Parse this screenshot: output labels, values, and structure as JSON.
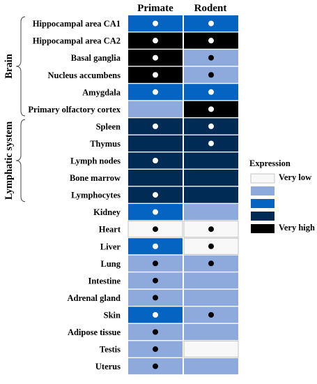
{
  "chart_data": {
    "type": "heatmap",
    "columns": [
      "Primate",
      "Rodent"
    ],
    "rows": [
      "Hippocampal area CA1",
      "Hippocampal area CA2",
      "Basal ganglia",
      "Nucleus accumbens",
      "Amygdala",
      "Primary olfactory cortex",
      "Spleen",
      "Thymus",
      "Lymph nodes",
      "Bone marrow",
      "Lymphocytes",
      "Kidney",
      "Heart",
      "Liver",
      "Lung",
      "Intestine",
      "Adrenal gland",
      "Skin",
      "Adipose tissue",
      "Testis",
      "Uterus"
    ],
    "levels": [
      1,
      2,
      3,
      4,
      5
    ],
    "level_colors": [
      "#f8f8f8",
      "#8eaadc",
      "#0563c1",
      "#002b55",
      "#000000"
    ],
    "values": [
      [
        3,
        3
      ],
      [
        5,
        5
      ],
      [
        5,
        2
      ],
      [
        5,
        2
      ],
      [
        3,
        3
      ],
      [
        2,
        5
      ],
      [
        4,
        4
      ],
      [
        4,
        4
      ],
      [
        4,
        4
      ],
      [
        4,
        4
      ],
      [
        4,
        4
      ],
      [
        3,
        2
      ],
      [
        1,
        1
      ],
      [
        3,
        1
      ],
      [
        2,
        2
      ],
      [
        2,
        2
      ],
      [
        2,
        2
      ],
      [
        3,
        2
      ],
      [
        2,
        2
      ],
      [
        2,
        1
      ],
      [
        2,
        2
      ]
    ],
    "dots": [
      [
        true,
        true
      ],
      [
        true,
        true
      ],
      [
        true,
        true
      ],
      [
        true,
        true
      ],
      [
        true,
        true
      ],
      [
        false,
        true
      ],
      [
        true,
        true
      ],
      [
        false,
        true
      ],
      [
        true,
        false
      ],
      [
        false,
        false
      ],
      [
        true,
        false
      ],
      [
        true,
        false
      ],
      [
        true,
        true
      ],
      [
        true,
        true
      ],
      [
        true,
        true
      ],
      [
        true,
        false
      ],
      [
        true,
        false
      ],
      [
        true,
        true
      ],
      [
        true,
        false
      ],
      [
        true,
        false
      ],
      [
        true,
        false
      ]
    ],
    "groups": [
      {
        "label": "Brain",
        "from": 0,
        "to": 5
      },
      {
        "label": "Lymphatic system",
        "from": 6,
        "to": 10
      }
    ],
    "legend": {
      "title": "Expression",
      "low_label": "Very low",
      "high_label": "Very high"
    }
  }
}
